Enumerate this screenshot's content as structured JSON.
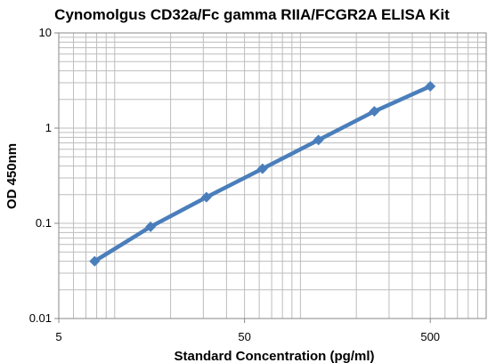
{
  "chart_data": {
    "type": "line",
    "title": "Cynomolgus CD32a/Fc gamma RIIA/FCGR2A ELISA Kit",
    "xlabel": "Standard Concentration (pg/ml)",
    "ylabel": "OD 450nm",
    "x_scale": "log",
    "y_scale": "log",
    "xlim": [
      5,
      1000
    ],
    "ylim": [
      0.01,
      10
    ],
    "x_ticks": [
      5,
      50,
      500
    ],
    "x_tick_labels": [
      "5",
      "50",
      "500"
    ],
    "y_ticks": [
      0.01,
      0.1,
      1,
      10
    ],
    "y_tick_labels": [
      "0.01",
      "0.1",
      "1",
      "10"
    ],
    "grid": true,
    "legend": "none",
    "series": [
      {
        "color": "#4a7ebb",
        "marker": "diamond",
        "x": [
          7.8,
          15.6,
          31.2,
          62.5,
          125,
          250,
          500
        ],
        "y": [
          0.04,
          0.092,
          0.188,
          0.375,
          0.75,
          1.5,
          2.75
        ]
      }
    ]
  }
}
